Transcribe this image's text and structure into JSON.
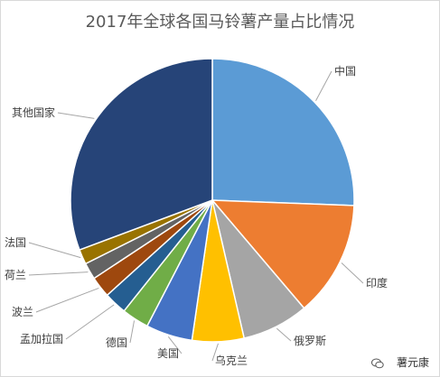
{
  "chart_data": {
    "type": "pie",
    "title": "2017年全球各国马铃薯产量占比情况",
    "slices": [
      {
        "label": "中国",
        "value": 25.6,
        "color": "#5B9BD5"
      },
      {
        "label": "印度",
        "value": 13.2,
        "color": "#ED7D31"
      },
      {
        "label": "俄罗斯",
        "value": 7.6,
        "color": "#A5A5A5"
      },
      {
        "label": "乌克兰",
        "value": 5.9,
        "color": "#FFC000"
      },
      {
        "label": "美国",
        "value": 5.3,
        "color": "#4472C4"
      },
      {
        "label": "德国",
        "value": 3.1,
        "color": "#70AD47"
      },
      {
        "label": "孟加拉国",
        "value": 2.6,
        "color": "#255E91"
      },
      {
        "label": "波兰",
        "value": 2.4,
        "color": "#9E480E"
      },
      {
        "label": "荷兰",
        "value": 1.9,
        "color": "#636363"
      },
      {
        "label": "法国",
        "value": 1.7,
        "color": "#997300"
      },
      {
        "label": "其他国家",
        "value": 30.7,
        "color": "#264478"
      }
    ]
  },
  "watermark": {
    "text": "薯元康",
    "icon": "wechat-icon"
  }
}
